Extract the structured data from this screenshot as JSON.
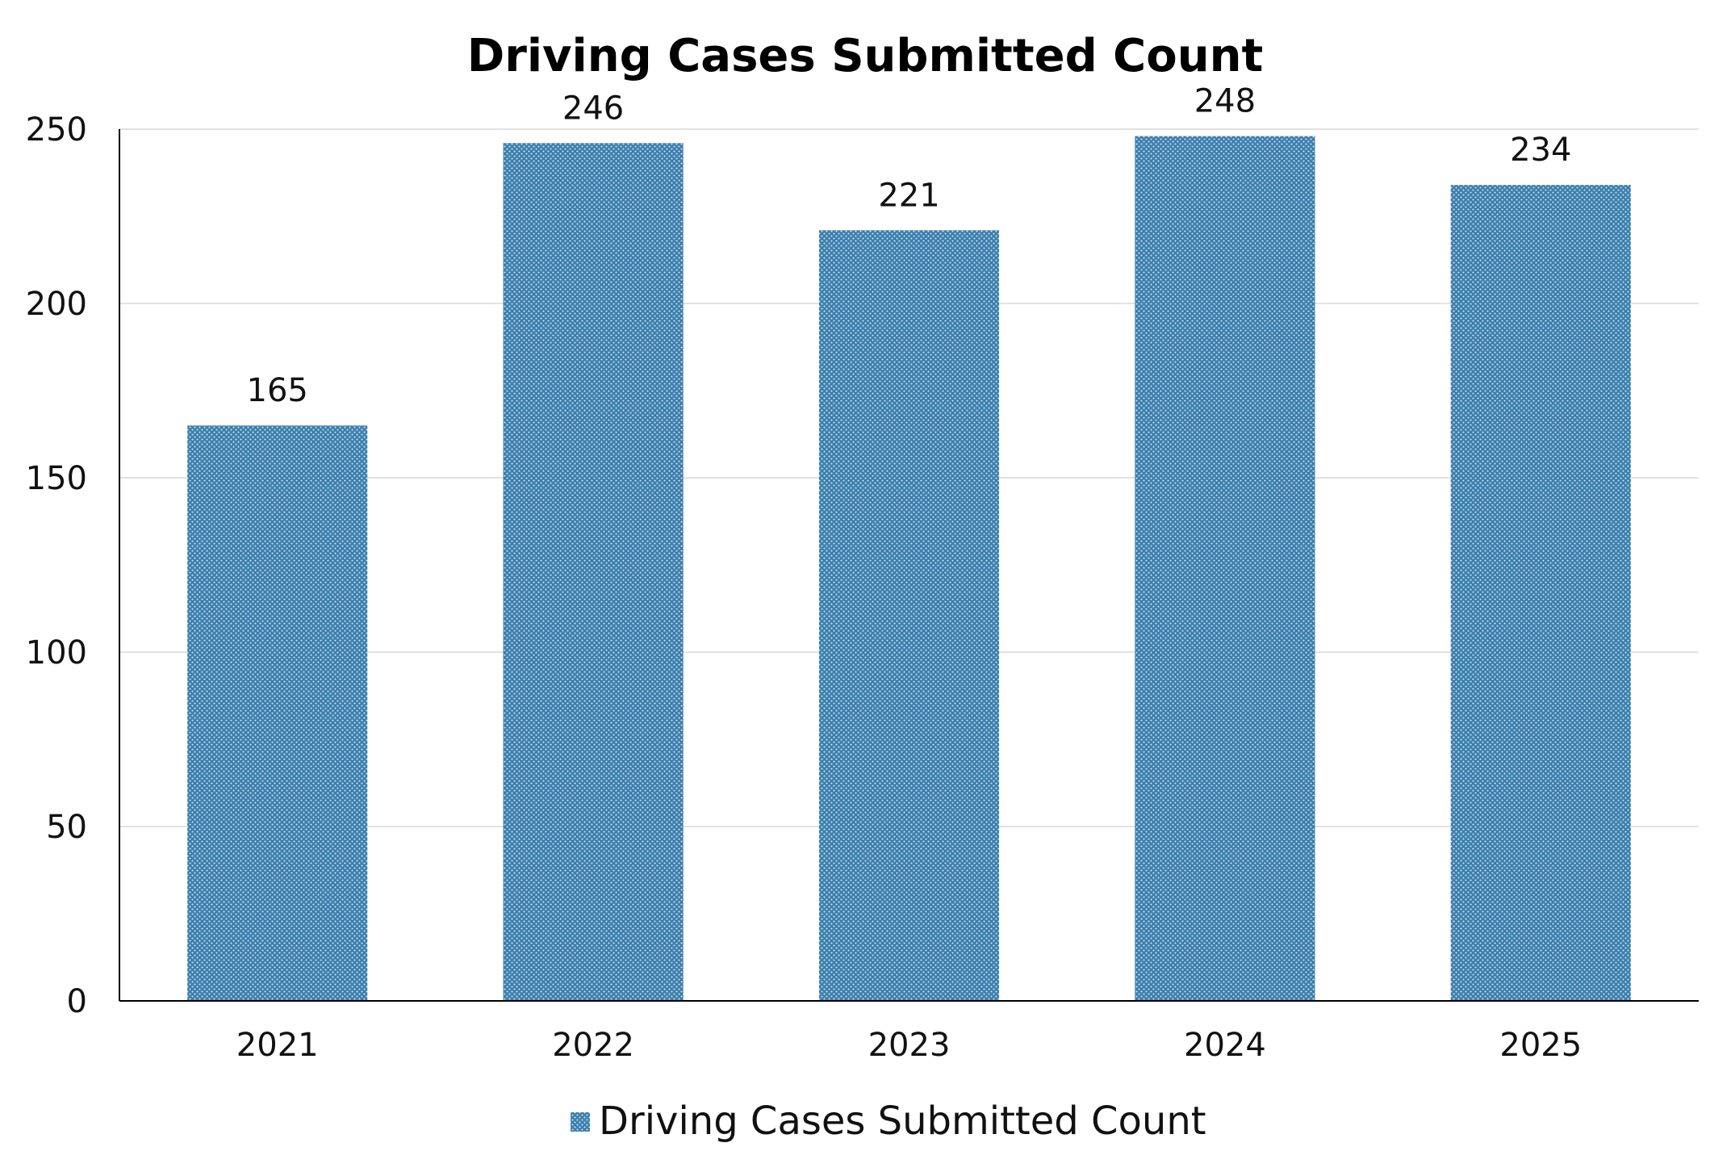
{
  "chart_data": {
    "type": "bar",
    "title": "Driving Cases Submitted Count",
    "xlabel": "",
    "ylabel": "",
    "categories": [
      "2021",
      "2022",
      "2023",
      "2024",
      "2025"
    ],
    "series": [
      {
        "name": "Driving Cases Submitted Count",
        "values": [
          165,
          246,
          221,
          248,
          234
        ],
        "color": "#3b7fad"
      }
    ],
    "data_labels": [
      "165",
      "246",
      "221",
      "248",
      "234"
    ],
    "ylim": [
      0,
      250
    ],
    "yticks": [
      "0",
      "50",
      "100",
      "150",
      "200",
      "250"
    ],
    "grid": true,
    "legend_position": "bottom"
  }
}
